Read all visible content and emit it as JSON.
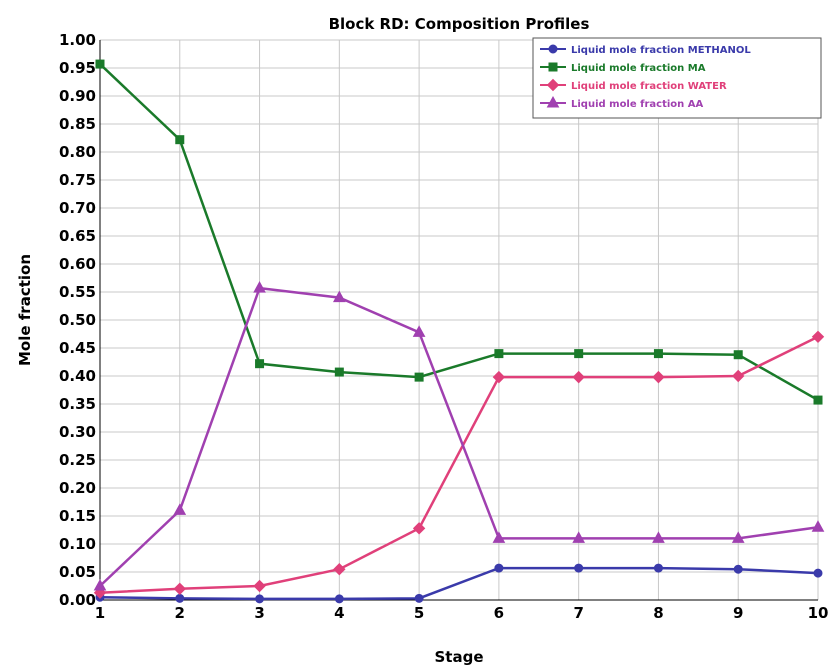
{
  "chart_data": {
    "type": "line",
    "title": "Block RD: Composition Profiles",
    "xlabel": "Stage",
    "ylabel": "Mole fraction",
    "x": [
      1,
      2,
      3,
      4,
      5,
      6,
      7,
      8,
      9,
      10
    ],
    "xlim": [
      1,
      10
    ],
    "ylim": [
      0,
      1
    ],
    "ytick_step": 0.05,
    "grid": true,
    "legend_position": "top-right",
    "series": [
      {
        "name": "Liquid mole fraction METHANOL",
        "color": "#3a3aaa",
        "marker": "circle",
        "values": [
          0.005,
          0.003,
          0.002,
          0.002,
          0.003,
          0.057,
          0.057,
          0.057,
          0.055,
          0.048
        ]
      },
      {
        "name": "Liquid mole fraction MA",
        "color": "#1a7a2a",
        "marker": "square",
        "values": [
          0.957,
          0.822,
          0.422,
          0.407,
          0.398,
          0.44,
          0.44,
          0.44,
          0.438,
          0.357
        ]
      },
      {
        "name": "Liquid mole fraction WATER",
        "color": "#e0407a",
        "marker": "diamond",
        "values": [
          0.013,
          0.02,
          0.025,
          0.055,
          0.128,
          0.398,
          0.398,
          0.398,
          0.4,
          0.47
        ]
      },
      {
        "name": "Liquid mole fraction AA",
        "color": "#a040b0",
        "marker": "triangle",
        "values": [
          0.025,
          0.16,
          0.557,
          0.54,
          0.478,
          0.11,
          0.11,
          0.11,
          0.11,
          0.13
        ]
      }
    ]
  }
}
